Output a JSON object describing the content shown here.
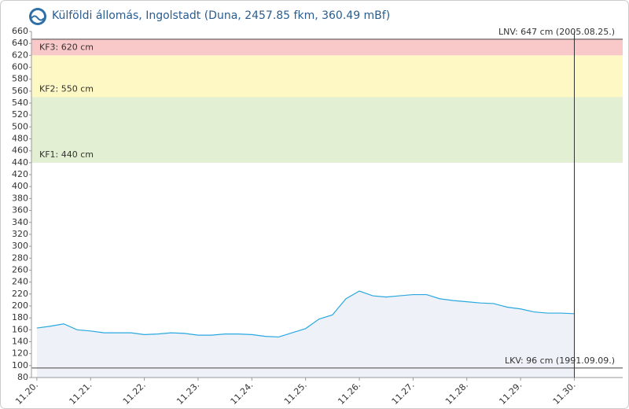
{
  "chart_data": {
    "type": "line",
    "title": "Külföldi állomás, Ingolstadt (Duna, 2457.85 fkm, 360.49 mBf)",
    "x": [
      0,
      0.25,
      0.5,
      0.75,
      1,
      1.25,
      1.5,
      1.75,
      2,
      2.25,
      2.5,
      2.75,
      3,
      3.25,
      3.5,
      3.75,
      4,
      4.25,
      4.5,
      4.75,
      5,
      5.25,
      5.5,
      5.75,
      6,
      6.25,
      6.5,
      6.75,
      7,
      7.25,
      7.5,
      7.75,
      8,
      8.25,
      8.5,
      8.75,
      9,
      9.25,
      9.5,
      9.75,
      10
    ],
    "series": [
      {
        "color": "#29a8e0",
        "values": [
          163,
          166,
          170,
          160,
          158,
          155,
          155,
          155,
          152,
          153,
          155,
          154,
          151,
          151,
          153,
          153,
          152,
          149,
          148,
          155,
          162,
          178,
          185,
          212,
          225,
          217,
          215,
          217,
          219,
          219,
          212,
          209,
          207,
          205,
          204,
          198,
          195,
          190,
          188,
          188,
          187
        ]
      }
    ],
    "xlim": [
      -0.1,
      10.9
    ],
    "xticks": [
      {
        "value": 0,
        "label": "11.20."
      },
      {
        "value": 1,
        "label": "11.21."
      },
      {
        "value": 2,
        "label": "11.22."
      },
      {
        "value": 3,
        "label": "11.23."
      },
      {
        "value": 4,
        "label": "11.24."
      },
      {
        "value": 5,
        "label": "11.25."
      },
      {
        "value": 6,
        "label": "11.26."
      },
      {
        "value": 7,
        "label": "11.27."
      },
      {
        "value": 8,
        "label": "11.28."
      },
      {
        "value": 9,
        "label": "11.29."
      },
      {
        "value": 10,
        "label": "11.30."
      }
    ],
    "ylim": [
      80,
      660
    ],
    "yticks": [
      80,
      100,
      120,
      140,
      160,
      180,
      200,
      220,
      240,
      260,
      280,
      300,
      320,
      340,
      360,
      380,
      400,
      420,
      440,
      460,
      480,
      500,
      520,
      540,
      560,
      580,
      600,
      620,
      640,
      660
    ],
    "bands": [
      {
        "label": "KF1: 440 cm",
        "value": 440,
        "color": "#e3efd3"
      },
      {
        "label": "KF2: 550 cm",
        "value": 550,
        "color": "#fdf8c4"
      },
      {
        "label": "KF3: 620 cm",
        "value": 620,
        "color": "#f9c9c9"
      }
    ],
    "reference_lines": [
      {
        "label": "LNV: 647 cm (2005.08.25.)",
        "value": 647
      },
      {
        "label": "LKV: 96 cm (1991.09.09.)",
        "value": 96
      }
    ],
    "now_x": 10
  }
}
